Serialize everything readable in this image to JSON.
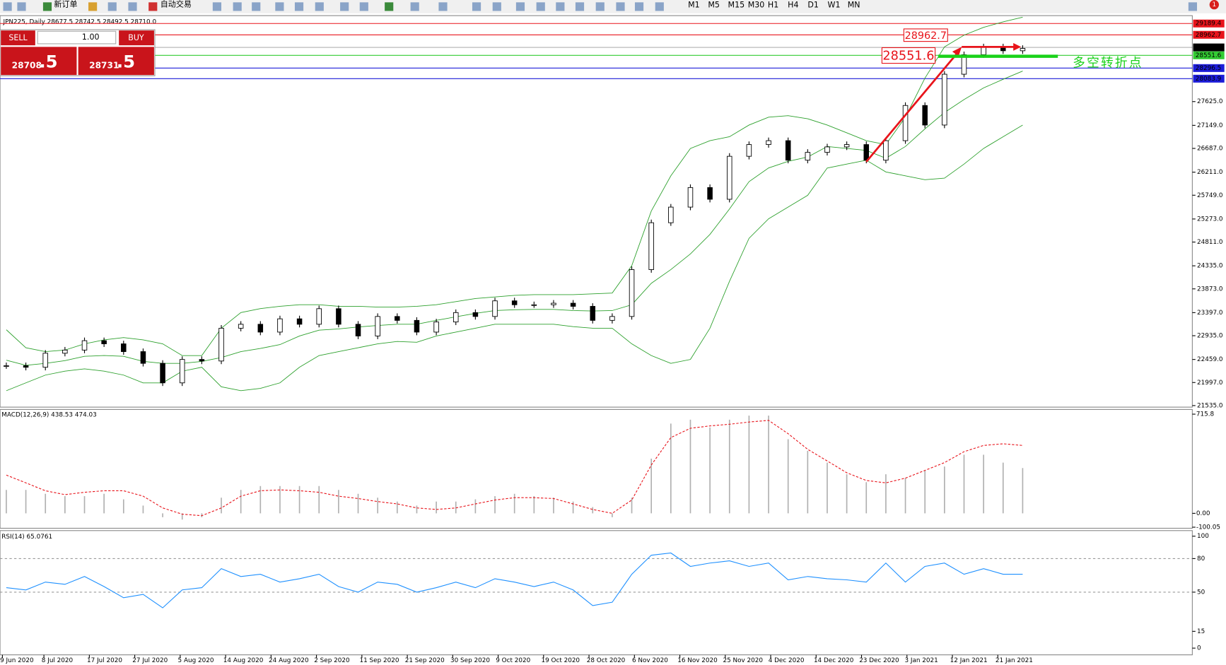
{
  "toolbar": {
    "new_order": "新订单",
    "auto_trading": "自动交易",
    "timeframes": [
      "M1",
      "M5",
      "M15",
      "M30",
      "H1",
      "H4",
      "D1",
      "W1",
      "MN"
    ],
    "alert_count": "1"
  },
  "trade_panel": {
    "sell": "SELL",
    "buy": "BUY",
    "lot": "1.00",
    "sell_price_main": "28708",
    "sell_price_tail": ".5",
    "buy_price_main": "28731",
    "buy_price_tail": ".5"
  },
  "main_chart": {
    "symbol_info": "JPN225, Daily  28677.5 28742.5 28492.5 28710.0",
    "ylim": [
      21504,
      29347
    ],
    "yticks": [
      {
        "value": 27625,
        "label": "27625.0"
      },
      {
        "value": 27149,
        "label": "27149.0"
      },
      {
        "value": 26687,
        "label": "26687.0"
      },
      {
        "value": 26211,
        "label": "26211.0"
      },
      {
        "value": 25749,
        "label": "25749.0"
      },
      {
        "value": 25273,
        "label": "25273.0"
      },
      {
        "value": 24811,
        "label": "24811.0"
      },
      {
        "value": 24335,
        "label": "24335.0"
      },
      {
        "value": 23873,
        "label": "23873.0"
      },
      {
        "value": 23397,
        "label": "23397.0"
      },
      {
        "value": 22935,
        "label": "22935.0"
      },
      {
        "value": 22459,
        "label": "22459.0"
      },
      {
        "value": 21997,
        "label": "21997.0"
      },
      {
        "value": 21535,
        "label": "21535.0"
      }
    ],
    "levels": [
      {
        "value": 29189.4,
        "label": "29189.4",
        "color": "#e8141b"
      },
      {
        "value": 28962.7,
        "label": "28962.7",
        "color": "#e8141b"
      },
      {
        "value": 28710,
        "label": "28710.0",
        "color": "#000000"
      },
      {
        "value": 28551.6,
        "label": "28551.6",
        "color": "#33cc33"
      },
      {
        "value": 28296.5,
        "label": "28296.5",
        "color": "#1c1cd8"
      },
      {
        "value": 28083.9,
        "label": "28083.9",
        "color": "#1c1cd8"
      }
    ],
    "annotations": {
      "high": "28962.7",
      "pivot": "28551.6",
      "note": "多空转折点"
    },
    "closes": [
      22334,
      22303,
      22584,
      22647,
      22835,
      22772,
      22616,
      22381,
      21990,
      22459,
      22428,
      23085,
      23164,
      23007,
      23273,
      23164,
      23476,
      23164,
      22929,
      23320,
      23242,
      23007,
      23210,
      23398,
      23320,
      23633,
      23555,
      23555,
      23586,
      23523,
      23242,
      23320,
      24259,
      25198,
      25511,
      25903,
      25668,
      26529,
      26764,
      26842,
      26451,
      26608,
      26717,
      26764,
      26451,
      26842,
      27547,
      27155,
      28173,
      28564,
      28721,
      28643,
      28690
    ],
    "upper_band": [
      23054,
      22694,
      22616,
      22647,
      22772,
      22851,
      22897,
      22851,
      22772,
      22537,
      22537,
      23085,
      23398,
      23477,
      23524,
      23555,
      23555,
      23524,
      23524,
      23508,
      23508,
      23524,
      23555,
      23618,
      23680,
      23711,
      23743,
      23758,
      23758,
      23758,
      23774,
      23790,
      24338,
      25433,
      26138,
      26686,
      26842,
      26921,
      27155,
      27312,
      27343,
      27281,
      27155,
      26999,
      26842,
      26764,
      27312,
      28095,
      28721,
      28956,
      29112,
      29222,
      29316
    ],
    "middle_band": [
      22444,
      22342,
      22381,
      22436,
      22522,
      22538,
      22522,
      22421,
      22381,
      22381,
      22420,
      22498,
      22616,
      22679,
      22757,
      22929,
      23046,
      23070,
      23109,
      23140,
      23164,
      23164,
      23242,
      23313,
      23383,
      23438,
      23454,
      23461,
      23461,
      23438,
      23430,
      23438,
      23555,
      23985,
      24260,
      24573,
      24964,
      25473,
      26021,
      26295,
      26428,
      26514,
      26725,
      26686,
      26647,
      26490,
      26725,
      27078,
      27406,
      27665,
      27899,
      28072,
      28236
    ],
    "lower_band": [
      21833,
      21990,
      22146,
      22224,
      22271,
      22224,
      22146,
      21990,
      21990,
      22224,
      22303,
      21911,
      21833,
      21880,
      21990,
      22303,
      22537,
      22616,
      22694,
      22772,
      22819,
      22804,
      22929,
      23007,
      23085,
      23164,
      23164,
      23164,
      23164,
      23117,
      23085,
      23085,
      22772,
      22537,
      22381,
      22459,
      23085,
      24025,
      24886,
      25277,
      25512,
      25747,
      26294,
      26373,
      26451,
      26216,
      26138,
      26060,
      26091,
      26373,
      26686,
      26921,
      27155
    ]
  },
  "macd": {
    "label": "MACD(12,26,9) 438.53 474.03",
    "ylim": [
      -102,
      744
    ],
    "yticks": [
      715.8,
      {
        "value": 0,
        "label": "0.00"
      },
      -100.05
    ],
    "histogram": [
      169,
      169,
      141,
      124,
      124,
      141,
      101,
      56,
      -28,
      -45,
      -28,
      113,
      169,
      197,
      197,
      197,
      197,
      169,
      141,
      113,
      85,
      56,
      85,
      85,
      101,
      124,
      141,
      124,
      113,
      85,
      45,
      -28,
      113,
      395,
      648,
      676,
      620,
      676,
      705,
      705,
      535,
      451,
      366,
      282,
      225,
      282,
      254,
      310,
      338,
      423,
      423,
      366,
      327
    ],
    "signal": [
      276,
      220,
      163,
      135,
      152,
      163,
      163,
      124,
      39,
      -6,
      -17,
      39,
      124,
      163,
      169,
      163,
      152,
      124,
      107,
      85,
      68,
      39,
      28,
      39,
      68,
      96,
      113,
      113,
      107,
      68,
      28,
      0,
      96,
      349,
      547,
      614,
      631,
      643,
      659,
      671,
      575,
      462,
      378,
      293,
      237,
      220,
      254,
      310,
      366,
      445,
      490,
      502,
      490
    ]
  },
  "rsi": {
    "label": "RSI(14) 65.0761",
    "ylim": [
      -6,
      105
    ],
    "yticks": [
      100,
      80,
      50,
      15,
      0
    ],
    "levels": [
      80,
      50
    ],
    "values": [
      54,
      52,
      59,
      57,
      64,
      55,
      45,
      48,
      36,
      52,
      54,
      71,
      64,
      66,
      59,
      62,
      66,
      55,
      50,
      59,
      57,
      50,
      54,
      59,
      54,
      62,
      59,
      55,
      59,
      52,
      38,
      41,
      66,
      83,
      85,
      73,
      76,
      78,
      73,
      76,
      61,
      64,
      62,
      61,
      59,
      76,
      59,
      73,
      76,
      66,
      71,
      66,
      66
    ]
  },
  "dates": [
    "9 Jun 2020",
    "8 Jul 2020",
    "17 Jul 2020",
    "27 Jul 2020",
    "5 Aug 2020",
    "14 Aug 2020",
    "24 Aug 2020",
    "2 Sep 2020",
    "11 Sep 2020",
    "21 Sep 2020",
    "30 Sep 2020",
    "9 Oct 2020",
    "19 Oct 2020",
    "28 Oct 2020",
    "6 Nov 2020",
    "16 Nov 2020",
    "25 Nov 2020",
    "4 Dec 2020",
    "14 Dec 2020",
    "23 Dec 2020",
    "3 Jan 2021",
    "12 Jan 2021",
    "21 Jan 2021"
  ]
}
